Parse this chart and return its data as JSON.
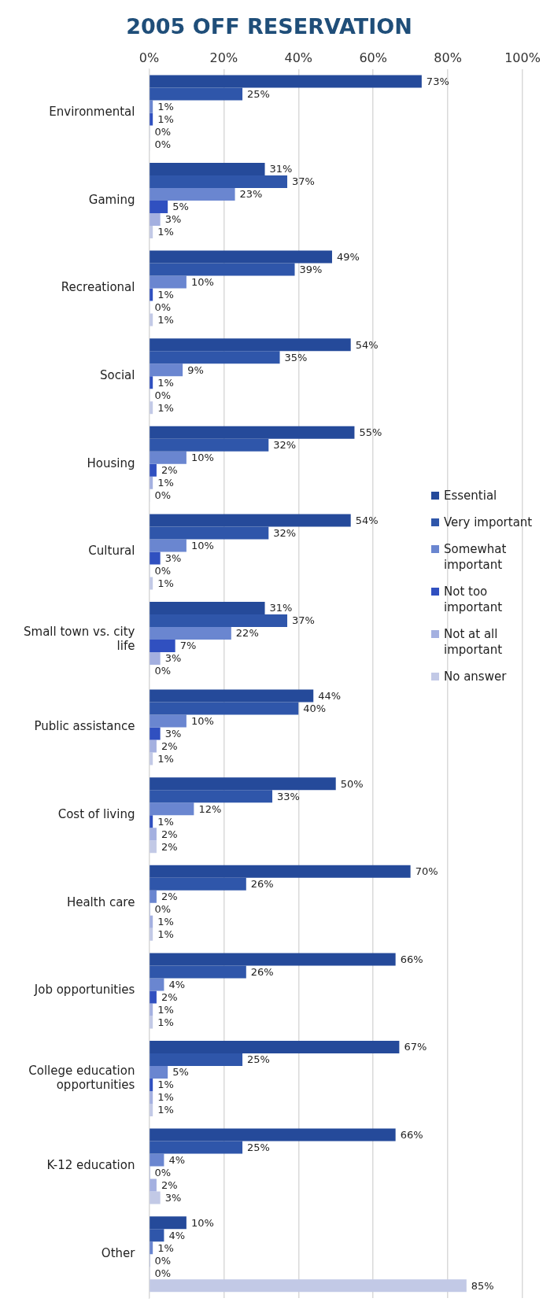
{
  "chart_data": {
    "type": "bar",
    "orientation": "horizontal",
    "title": "2005 OFF RESERVATION",
    "categories": [
      "Environmental",
      "Gaming",
      "Recreational",
      "Social",
      "Housing",
      "Cultural",
      "Small town vs. city life",
      "Public assistance",
      "Cost of living",
      "Health care",
      "Job opportunities",
      "College education opportunities",
      "K-12 education",
      "Other"
    ],
    "series": [
      {
        "name": "Essential",
        "color": "#254a9a",
        "values": [
          73,
          31,
          49,
          54,
          55,
          54,
          31,
          44,
          50,
          70,
          66,
          67,
          66,
          10
        ],
        "value_labels": [
          "73%",
          "31%",
          "49%",
          "54%",
          "55%",
          "54%",
          "31%",
          "44%",
          "50%",
          "70%",
          "66%",
          "67%",
          "66%",
          "10%"
        ]
      },
      {
        "name": "Very important",
        "color": "#2f56aa",
        "values": [
          25,
          37,
          39,
          35,
          32,
          32,
          37,
          40,
          33,
          26,
          26,
          25,
          25,
          4
        ],
        "value_labels": [
          "25%",
          "37%",
          "39%",
          "35%",
          "32%",
          "32%",
          "37%",
          "40%",
          "33%",
          "26%",
          "26%",
          "25%",
          "25%",
          "4%"
        ]
      },
      {
        "name": "Somewhat important",
        "color": "#6a86d0",
        "values": [
          1,
          23,
          10,
          9,
          10,
          10,
          22,
          10,
          12,
          2,
          4,
          5,
          4,
          1
        ],
        "value_labels": [
          "1%",
          "23%",
          "10%",
          "9%",
          "10%",
          "10%",
          "22%",
          "10%",
          "12%",
          "2%",
          "4%",
          "5%",
          "4%",
          "1%"
        ]
      },
      {
        "name": "Not too important",
        "color": "#3050c0",
        "values": [
          1,
          5,
          1,
          1,
          2,
          3,
          7,
          3,
          1,
          0,
          2,
          1,
          0,
          0
        ],
        "value_labels": [
          "1%",
          "5%",
          "1%",
          "1%",
          "2%",
          "3%",
          "7%",
          "3%",
          "1%",
          "0%",
          "2%",
          "1%",
          "0%",
          "0%"
        ]
      },
      {
        "name": "Not at all important",
        "color": "#a4b0e0",
        "values": [
          0,
          3,
          0,
          0,
          1,
          0,
          3,
          2,
          2,
          1,
          1,
          1,
          2,
          0
        ],
        "value_labels": [
          "0%",
          "3%",
          "0%",
          "0%",
          "1%",
          "0%",
          "3%",
          "2%",
          "2%",
          "1%",
          "1%",
          "1%",
          "2%",
          "0%"
        ]
      },
      {
        "name": "No answer",
        "color": "#c2c9e6",
        "values": [
          0,
          1,
          1,
          1,
          0,
          1,
          0,
          1,
          2,
          1,
          1,
          1,
          3,
          85
        ],
        "value_labels": [
          "0%",
          "1%",
          "1%",
          "1%",
          "0%",
          "1%",
          "0%",
          "1%",
          "2%",
          "1%",
          "1%",
          "1%",
          "3%",
          "85%"
        ]
      }
    ],
    "xlim": [
      0,
      100
    ],
    "xticks": [
      {
        "value": 0,
        "label": "0%"
      },
      {
        "value": 20,
        "label": "20%"
      },
      {
        "value": 40,
        "label": "40%"
      },
      {
        "value": 60,
        "label": "60%"
      },
      {
        "value": 80,
        "label": "80%"
      },
      {
        "value": 100,
        "label": "100%"
      }
    ],
    "grid": "x",
    "legend": "right"
  }
}
